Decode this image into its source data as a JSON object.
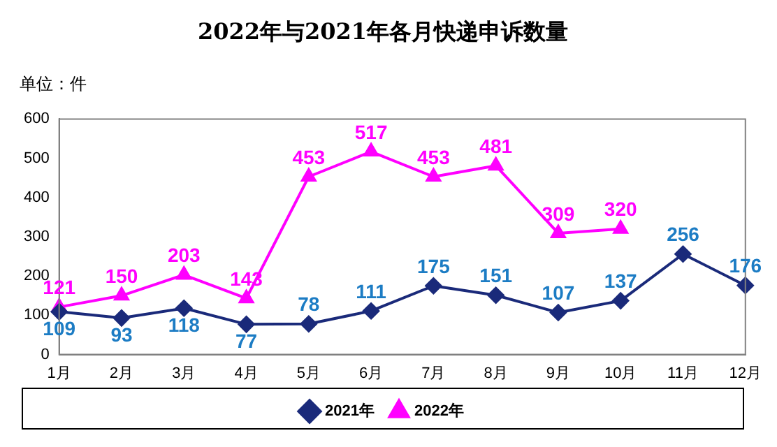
{
  "chart_data": {
    "type": "line",
    "title": "2022年与2021年各月快递申诉数量",
    "annotations": [
      "单位：件"
    ],
    "categories": [
      "1月",
      "2月",
      "3月",
      "4月",
      "5月",
      "6月",
      "7月",
      "8月",
      "9月",
      "10月",
      "11月",
      "12月"
    ],
    "series": [
      {
        "name": "2021年",
        "color": "#1a2a7a",
        "marker": "diamond",
        "values": [
          109,
          93,
          118,
          77,
          78,
          111,
          175,
          151,
          107,
          137,
          256,
          176
        ]
      },
      {
        "name": "2022年",
        "color": "#ff00ff",
        "marker": "triangle",
        "values": [
          121,
          150,
          203,
          143,
          453,
          517,
          453,
          481,
          309,
          320,
          null,
          null
        ]
      }
    ],
    "ylim": [
      0,
      600
    ],
    "yticks": [
      0,
      100,
      200,
      300,
      400,
      500,
      600
    ],
    "grid": false,
    "legend": "bottom",
    "data_labels": true
  }
}
